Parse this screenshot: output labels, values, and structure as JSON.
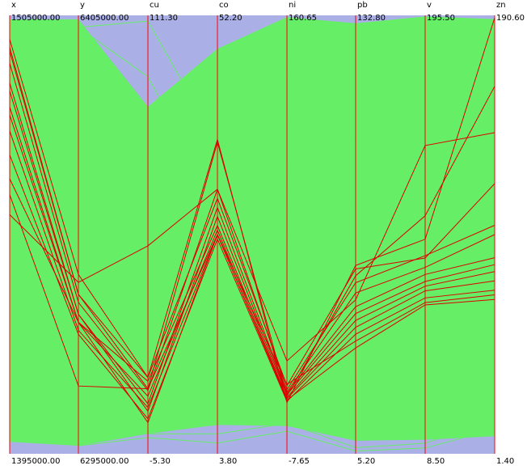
{
  "chart_data": {
    "type": "parallel-coordinates",
    "dimensions": [
      {
        "name": "x",
        "max_label": "1505000.00",
        "min_label": "1395000.00",
        "max": 1505000,
        "min": 1395000
      },
      {
        "name": "y",
        "max_label": "6405000.00",
        "min_label": "6295000.00",
        "max": 6405000,
        "min": 6295000
      },
      {
        "name": "cu",
        "max_label": "111.30",
        "min_label": "-5.30",
        "max": 111.3,
        "min": -5.3
      },
      {
        "name": "co",
        "max_label": "52.20",
        "min_label": "3.80",
        "max": 52.2,
        "min": 3.8
      },
      {
        "name": "ni",
        "max_label": "160.65",
        "min_label": "-7.65",
        "max": 160.65,
        "min": -7.65
      },
      {
        "name": "pb",
        "max_label": "132.80",
        "min_label": "5.20",
        "max": 132.8,
        "min": 5.2
      },
      {
        "name": "v",
        "max_label": "195.50",
        "min_label": "8.50",
        "max": 195.5,
        "min": 8.5
      },
      {
        "name": "zn",
        "max_label": "190.60",
        "min_label": "1.40",
        "max": 190.6,
        "min": 1.4
      }
    ],
    "envelope_color": "#aab0e6",
    "background_lines_color": "#66ee66",
    "axis_color": "#ff0000",
    "highlight_color": "#dd0000",
    "envelope": {
      "upper": [
        1505000,
        6405000,
        111.3,
        52.2,
        160.65,
        132.8,
        195.5,
        190.6
      ],
      "lower": [
        1395000,
        6295000,
        -5.3,
        3.8,
        -7.65,
        5.2,
        8.5,
        1.4
      ]
    },
    "background_band": {
      "upper": [
        1504000,
        6404000,
        87.0,
        48.5,
        160.0,
        130.5,
        195.0,
        189.0
      ],
      "lower": [
        1398000,
        6297000,
        0.0,
        7.0,
        3.0,
        9.0,
        14.5,
        9.0
      ]
    },
    "background_lines": [
      [
        1503000,
        6402000,
        109.8,
        38.0,
        70.0,
        128.0,
        152.0,
        185.0
      ],
      [
        1500000,
        6400000,
        75.0,
        42.0,
        145.0,
        110.0,
        178.0,
        140.0
      ],
      [
        1497000,
        6390000,
        64.0,
        30.0,
        123.0,
        74.0,
        110.0,
        151.0
      ],
      [
        1492000,
        6388000,
        31.0,
        47.0,
        138.0,
        96.0,
        175.0,
        120.0
      ],
      [
        1488000,
        6380000,
        44.0,
        29.0,
        30.0,
        122.0,
        60.0,
        100.0
      ],
      [
        1485000,
        6395000,
        52.0,
        22.0,
        100.0,
        66.0,
        134.0,
        93.0
      ],
      [
        1480000,
        6372000,
        38.0,
        34.0,
        80.0,
        57.0,
        104.0,
        118.0
      ],
      [
        1474000,
        6385000,
        72.0,
        38.0,
        116.0,
        91.0,
        161.0,
        131.0
      ],
      [
        1468000,
        6360000,
        26.0,
        21.0,
        56.0,
        39.0,
        84.0,
        72.0
      ],
      [
        1462000,
        6350000,
        44.0,
        17.0,
        70.0,
        30.0,
        78.0,
        80.0
      ],
      [
        1455000,
        6340000,
        19.0,
        19.0,
        40.0,
        28.0,
        60.0,
        66.0
      ],
      [
        1448000,
        6330000,
        14.0,
        13.0,
        28.0,
        22.0,
        56.0,
        60.0
      ],
      [
        1440000,
        6320000,
        8.0,
        12.0,
        25.0,
        17.0,
        40.0,
        44.0
      ],
      [
        1432000,
        6315000,
        6.0,
        9.0,
        18.0,
        14.0,
        30.0,
        36.0
      ],
      [
        1425000,
        6310000,
        3.0,
        8.0,
        14.0,
        11.0,
        22.0,
        28.0
      ],
      [
        1418000,
        6305000,
        1.0,
        7.0,
        8.0,
        9.0,
        18.0,
        20.0
      ],
      [
        1410000,
        6300000,
        0.0,
        6.0,
        4.0,
        7.0,
        13.0,
        16.0
      ],
      [
        1402000,
        6297000,
        -1.0,
        5.0,
        1.0,
        6.0,
        11.0,
        12.0
      ],
      [
        1495000,
        6330000,
        58.0,
        43.0,
        131.0,
        104.0,
        167.0,
        127.0
      ],
      [
        1470000,
        6398000,
        66.0,
        25.0,
        92.0,
        118.0,
        147.0,
        174.0
      ],
      [
        1499000,
        6402000,
        95.0,
        31.0,
        104.0,
        78.0,
        120.0,
        157.0
      ],
      [
        1466000,
        6345000,
        30.0,
        26.0,
        105.0,
        46.0,
        125.0,
        110.0
      ],
      [
        1456000,
        6365000,
        22.0,
        30.0,
        35.0,
        42.0,
        105.0,
        80.0
      ],
      [
        1478000,
        6352000,
        48.0,
        20.0,
        86.0,
        60.0,
        90.0,
        102.0
      ],
      [
        1442000,
        6336000,
        12.0,
        35.0,
        22.0,
        34.0,
        68.0,
        54.0
      ],
      [
        1430000,
        6312000,
        16.0,
        15.0,
        60.0,
        25.0,
        48.0,
        48.0
      ],
      [
        1484000,
        6338000,
        28.0,
        40.0,
        50.0,
        88.0,
        140.0,
        66.0
      ],
      [
        1414000,
        6302000,
        2.0,
        28.0,
        12.0,
        16.0,
        26.0,
        24.0
      ],
      [
        1450000,
        6325000,
        10.0,
        11.0,
        45.0,
        12.0,
        36.0,
        30.0
      ],
      [
        1490000,
        6382000,
        80.0,
        36.0,
        150.0,
        100.0,
        185.0,
        140.0
      ],
      [
        1460000,
        6378000,
        35.0,
        24.0,
        64.0,
        71.0,
        96.0,
        108.0
      ],
      [
        1476000,
        6392000,
        55.0,
        44.0,
        120.0,
        84.0,
        150.0,
        125.0
      ]
    ],
    "highlighted_lines": [
      [
        1499000,
        6340000,
        15.0,
        38.5,
        12.0,
        60.0,
        100.0,
        189.6
      ],
      [
        1497000,
        6335000,
        12.0,
        38.2,
        14.5,
        57.0,
        110.0,
        160.0
      ],
      [
        1496000,
        6335000,
        15.0,
        32.0,
        18.5,
        59.0,
        92.0,
        118.0
      ],
      [
        1493000,
        6333000,
        11.5,
        33.0,
        17.0,
        55.0,
        93.0,
        100.0
      ],
      [
        1488000,
        6330000,
        8.0,
        31.0,
        16.0,
        52.0,
        88.0,
        96.0
      ],
      [
        1486000,
        6330000,
        6.0,
        30.0,
        15.5,
        48.0,
        85.0,
        86.0
      ],
      [
        1482000,
        6328000,
        14.0,
        29.0,
        15.0,
        46.0,
        82.0,
        83.0
      ],
      [
        1480000,
        6328000,
        10.0,
        28.5,
        14.0,
        44.0,
        80.0,
        80.0
      ],
      [
        1476000,
        6326000,
        7.0,
        28.0,
        13.5,
        42.0,
        78.0,
        76.0
      ],
      [
        1470000,
        6325000,
        4.0,
        27.5,
        12.5,
        40.0,
        75.0,
        72.0
      ],
      [
        1464000,
        6328000,
        3.0,
        28.0,
        19.0,
        38.0,
        73.0,
        70.0
      ],
      [
        1460000,
        6312000,
        12.0,
        28.0,
        13.0,
        36.0,
        72.0,
        68.0
      ],
      [
        1455000,
        6338000,
        50.0,
        33.0,
        28.0,
        50.0,
        140.0,
        140.0
      ]
    ]
  }
}
